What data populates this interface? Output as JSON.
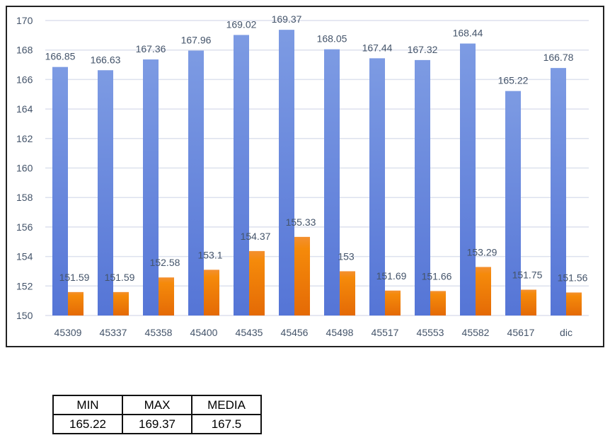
{
  "chart_data": {
    "type": "bar",
    "categories": [
      "45309",
      "45337",
      "45358",
      "45400",
      "45435",
      "45456",
      "45498",
      "45517",
      "45553",
      "45582",
      "45617",
      "dic"
    ],
    "series": [
      {
        "values": [
          166.85,
          166.63,
          167.36,
          167.96,
          169.02,
          169.37,
          168.05,
          167.44,
          167.32,
          168.44,
          165.22,
          166.78
        ],
        "color": "#6f8fde"
      },
      {
        "values": [
          151.59,
          151.59,
          152.58,
          153.1,
          154.37,
          155.33,
          153,
          151.69,
          151.66,
          153.29,
          151.75,
          151.56
        ],
        "color": "#f07a10"
      }
    ],
    "ylim": [
      150,
      170
    ],
    "yticks": [
      150,
      152,
      154,
      156,
      158,
      160,
      162,
      164,
      166,
      168,
      170
    ],
    "grid": true,
    "data_labels": true
  },
  "summary_table": {
    "headers": [
      "MIN",
      "MAX",
      "MEDIA"
    ],
    "values": [
      "165.22",
      "169.37",
      "167.5"
    ]
  }
}
